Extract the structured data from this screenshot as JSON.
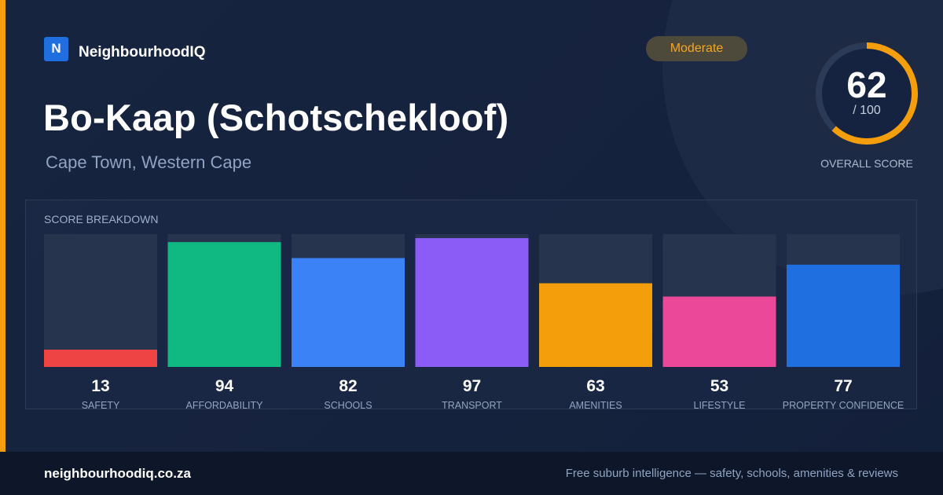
{
  "brand": {
    "logo_letter": "N",
    "name": "NeighbourhoodIQ"
  },
  "badge": {
    "label": "Moderate",
    "color": "#f5a623"
  },
  "suburb": {
    "name": "Bo-Kaap (Schotschekloof)",
    "location": "Cape Town, Western Cape"
  },
  "overall": {
    "score": "62",
    "max_label": "/ 100",
    "label": "OVERALL SCORE",
    "score_fraction": 0.62,
    "ring_color": "#f59e0b"
  },
  "breakdown": {
    "title": "SCORE BREAKDOWN"
  },
  "chart_data": {
    "type": "bar",
    "title": "SCORE BREAKDOWN",
    "xlabel": "",
    "ylabel": "",
    "ylim": [
      0,
      100
    ],
    "categories": [
      "SAFETY",
      "AFFORDABILITY",
      "SCHOOLS",
      "TRANSPORT",
      "AMENITIES",
      "LIFESTYLE",
      "PROPERTY CONFIDENCE"
    ],
    "values": [
      13,
      94,
      82,
      97,
      63,
      53,
      77
    ],
    "colors": [
      "#ef4444",
      "#10b981",
      "#3b82f6",
      "#8b5cf6",
      "#f59e0b",
      "#ec4899",
      "#1f6fe0"
    ],
    "grid": false,
    "legend": "none"
  },
  "footer": {
    "url": "neighbourhoodiq.co.za",
    "tagline": "Free suburb intelligence — safety, schools, amenities & reviews"
  }
}
